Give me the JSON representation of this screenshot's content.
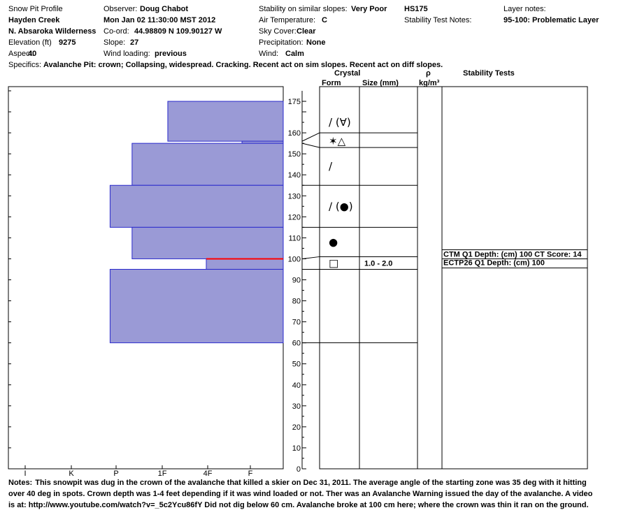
{
  "header": {
    "title": "Snow Pit Profile",
    "location": "Hayden Creek",
    "area": "N. Absaroka Wilderness",
    "elevation_label": "Elevation (ft)",
    "elevation_value": "9275",
    "aspect_label": "Aspect:",
    "aspect_value": "40",
    "specifics_label": "Specifics:",
    "specifics_value": "Avalanche Pit: crown; Collapsing, widespread. Cracking. Recent act on sim slopes. Recent act on diff slopes.",
    "observer_label": "Observer:",
    "observer_value": "Doug Chabot",
    "date": "Mon Jan 02 11:30:00 MST 2012",
    "coord_label": "Co-ord:",
    "coord_value": "44.98809 N 109.90127 W",
    "slope_label": "Slope:",
    "slope_value": "27",
    "wind_loading_label": "Wind loading:",
    "wind_loading_value": "previous",
    "stability_label": "Stability on similar slopes:",
    "stability_value": "Very Poor",
    "air_temp_label": "Air Temperature:",
    "air_temp_value": "C",
    "sky_label": "Sky Cover:",
    "sky_value": "Clear",
    "precip_label": "Precipitation:",
    "precip_value": "None",
    "wind_label": "Wind:",
    "wind_value": "Calm",
    "hs": "HS175",
    "stability_notes_label": "Stability Test Notes:",
    "layer_notes_label": "Layer notes:",
    "layer_notes_value": "95-100: Problematic Layer"
  },
  "columns": {
    "crystal": "Crystal",
    "form": "Form",
    "size": "Size (mm)",
    "rho": "ρ",
    "rho_unit": "kg/m³",
    "stability_tests": "Stability Tests"
  },
  "notes": {
    "label": "Notes:",
    "text": "This snowpit was dug in the crown of the avalanche that killed a skier on Dec 31, 2011.  The average angle of the starting zone was 35 deg with it hitting over 40 deg in spots.  Crown depth was 1-4 feet depending if it was wind loaded or not.  Ther was an Avalanche Warning issued the day of the avalanche. A video is at: http://www.youtube.com/watch?v=_5c2Ycu86fY Did not dig below 60 cm. Avalanche broke at 100 cm here; where the crown was thin it ran on the ground."
  },
  "chart_data": {
    "type": "bar",
    "orientation": "horizontal",
    "y_axis": {
      "min": 0,
      "max": 180,
      "ticks": [
        0,
        10,
        20,
        30,
        40,
        50,
        60,
        70,
        80,
        90,
        100,
        110,
        120,
        130,
        140,
        150,
        160,
        170
      ]
    },
    "hand_hardness_scale": [
      "I",
      "K",
      "P",
      "1F",
      "4F",
      "F"
    ],
    "hardness_layers": [
      {
        "top": 175,
        "bottom": 156,
        "hardness": "4F",
        "extent": 0.42
      },
      {
        "top": 156,
        "bottom": 155,
        "hardness": "F",
        "extent": 0.15
      },
      {
        "top": 155,
        "bottom": 135,
        "hardness": "1F",
        "extent": 0.55
      },
      {
        "top": 135,
        "bottom": 115,
        "hardness": "P",
        "extent": 0.63
      },
      {
        "top": 115,
        "bottom": 100,
        "hardness": "1F",
        "extent": 0.55
      },
      {
        "top": 100,
        "bottom": 95,
        "hardness": "4F",
        "extent": 0.28
      },
      {
        "top": 95,
        "bottom": 60,
        "hardness": "P",
        "extent": 0.63
      }
    ],
    "highlight_depth": 100,
    "highlight_color": "#ff0000",
    "bar_fill": "#9a9ad6",
    "bar_stroke": "#2a2acc",
    "layer_boundaries": [
      175,
      160,
      153,
      135,
      115,
      101,
      95,
      60
    ],
    "crystal_layers": [
      {
        "depth": 165,
        "form": "/ (∀)",
        "size": ""
      },
      {
        "depth": 156,
        "form": "✶△",
        "size": ""
      },
      {
        "depth": 144,
        "form": "/",
        "size": ""
      },
      {
        "depth": 125,
        "form": "/ (●)",
        "size": ""
      },
      {
        "depth": 108,
        "form": "●",
        "size": ""
      },
      {
        "depth": 98,
        "form": "□",
        "size": "1.0 - 2.0"
      }
    ],
    "stability_tests": [
      {
        "depth": 100,
        "text": "CTM Q1 Depth: (cm) 100 CT Score: 14"
      },
      {
        "depth": 100,
        "text": "ECTP26 Q1 Depth: (cm) 100"
      }
    ]
  }
}
